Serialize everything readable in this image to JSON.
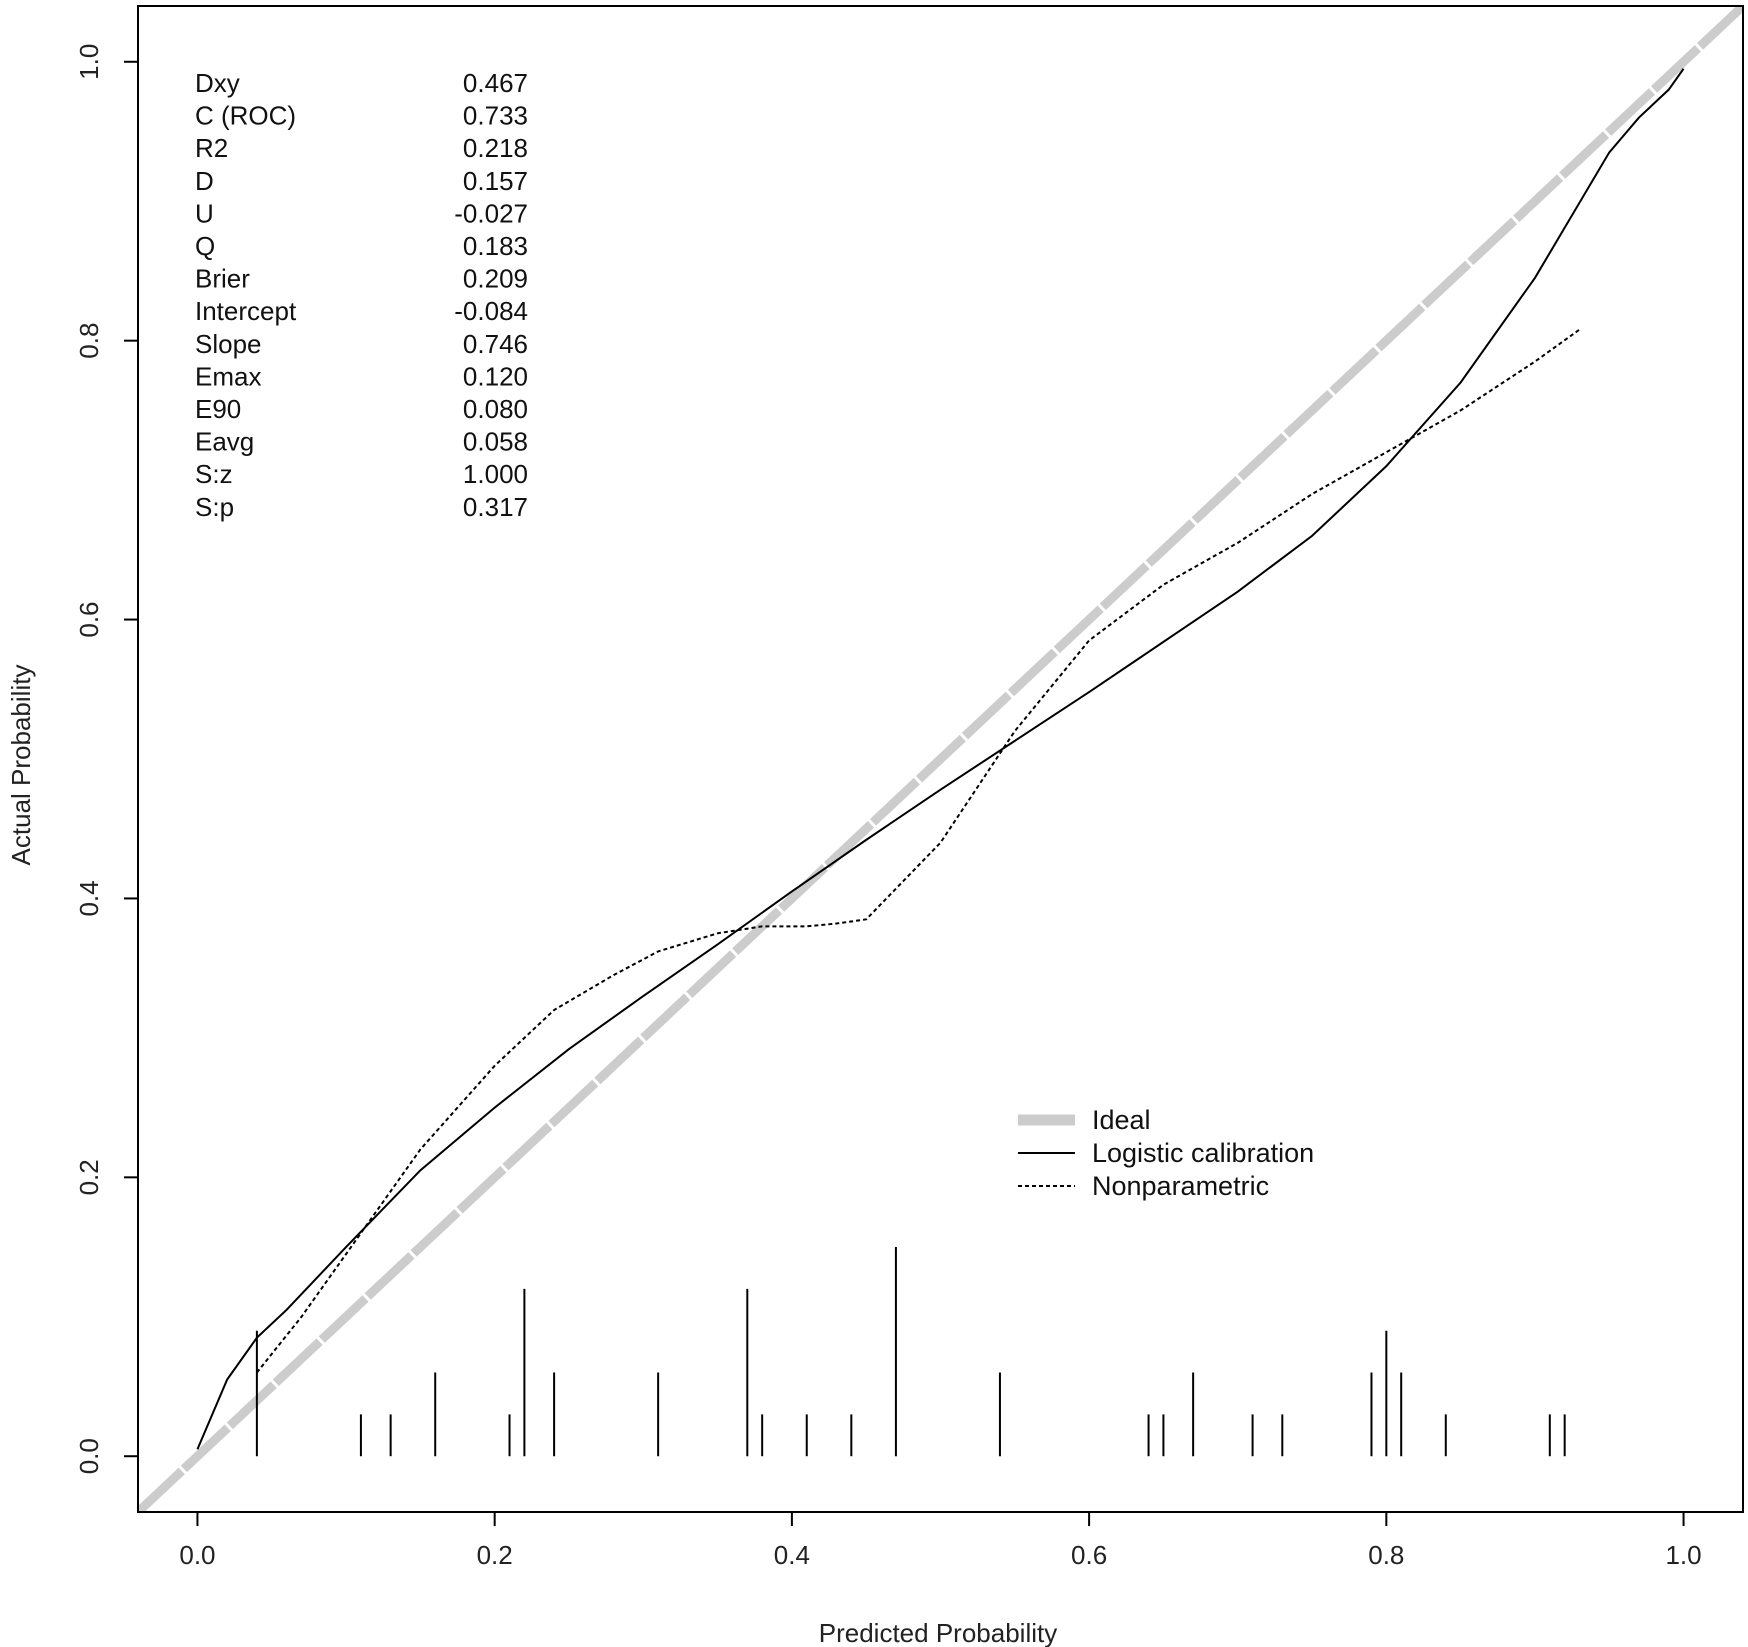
{
  "chart_data": {
    "type": "line",
    "xlabel": "Predicted Probability",
    "ylabel": "Actual Probability",
    "xlim": [
      -0.04,
      1.04
    ],
    "ylim": [
      -0.04,
      1.04
    ],
    "x_ticks": [
      0.0,
      0.2,
      0.4,
      0.6,
      0.8,
      1.0
    ],
    "x_tick_labels": [
      "0.0",
      "0.2",
      "0.4",
      "0.6",
      "0.8",
      "1.0"
    ],
    "y_ticks": [
      0.0,
      0.2,
      0.4,
      0.6,
      0.8,
      1.0
    ],
    "y_tick_labels": [
      "0.0",
      "0.2",
      "0.4",
      "0.6",
      "0.8",
      "1.0"
    ],
    "stats": [
      {
        "label": "Dxy",
        "value": "0.467"
      },
      {
        "label": "C (ROC)",
        "value": "0.733"
      },
      {
        "label": "R2",
        "value": "0.218"
      },
      {
        "label": "D",
        "value": "0.157"
      },
      {
        "label": "U",
        "value": "-0.027"
      },
      {
        "label": "Q",
        "value": "0.183"
      },
      {
        "label": "Brier",
        "value": "0.209"
      },
      {
        "label": "Intercept",
        "value": "-0.084"
      },
      {
        "label": "Slope",
        "value": "0.746"
      },
      {
        "label": "Emax",
        "value": "0.120"
      },
      {
        "label": "E90",
        "value": "0.080"
      },
      {
        "label": "Eavg",
        "value": "0.058"
      },
      {
        "label": "S:z",
        "value": "1.000"
      },
      {
        "label": "S:p",
        "value": "0.317"
      }
    ],
    "legend": {
      "position": "center-right-lower",
      "entries": [
        {
          "label": "Ideal",
          "style": "thick-gray"
        },
        {
          "label": "Logistic calibration",
          "style": "solid"
        },
        {
          "label": "Nonparametric",
          "style": "dotted"
        }
      ]
    },
    "series": [
      {
        "name": "Ideal",
        "color": "#cccccc",
        "x": [
          -0.04,
          1.04
        ],
        "y": [
          -0.04,
          1.04
        ]
      },
      {
        "name": "Logistic calibration",
        "color": "#000000",
        "x": [
          0.0,
          0.02,
          0.04,
          0.06,
          0.1,
          0.15,
          0.2,
          0.25,
          0.3,
          0.35,
          0.4,
          0.45,
          0.5,
          0.55,
          0.6,
          0.65,
          0.7,
          0.75,
          0.8,
          0.85,
          0.9,
          0.95,
          0.97,
          0.99,
          1.0
        ],
        "y": [
          0.005,
          0.055,
          0.085,
          0.105,
          0.15,
          0.205,
          0.25,
          0.292,
          0.33,
          0.367,
          0.405,
          0.442,
          0.478,
          0.513,
          0.548,
          0.584,
          0.62,
          0.66,
          0.71,
          0.77,
          0.845,
          0.935,
          0.96,
          0.98,
          0.995
        ]
      },
      {
        "name": "Nonparametric",
        "color": "#000000",
        "x": [
          0.04,
          0.07,
          0.11,
          0.15,
          0.2,
          0.24,
          0.28,
          0.31,
          0.35,
          0.38,
          0.41,
          0.43,
          0.45,
          0.5,
          0.55,
          0.6,
          0.65,
          0.7,
          0.75,
          0.8,
          0.85,
          0.9,
          0.93
        ],
        "y": [
          0.06,
          0.1,
          0.16,
          0.22,
          0.28,
          0.32,
          0.345,
          0.362,
          0.375,
          0.38,
          0.38,
          0.382,
          0.385,
          0.44,
          0.52,
          0.585,
          0.625,
          0.655,
          0.69,
          0.72,
          0.75,
          0.785,
          0.808
        ]
      }
    ],
    "rug": {
      "x": [
        0.04,
        0.11,
        0.13,
        0.16,
        0.21,
        0.22,
        0.24,
        0.31,
        0.37,
        0.38,
        0.41,
        0.44,
        0.47,
        0.54,
        0.64,
        0.65,
        0.67,
        0.71,
        0.73,
        0.79,
        0.8,
        0.81,
        0.84,
        0.91,
        0.92
      ],
      "height": [
        0.09,
        0.03,
        0.03,
        0.06,
        0.03,
        0.12,
        0.06,
        0.06,
        0.12,
        0.03,
        0.03,
        0.03,
        0.15,
        0.06,
        0.03,
        0.03,
        0.06,
        0.03,
        0.03,
        0.06,
        0.09,
        0.06,
        0.03,
        0.03,
        0.03
      ]
    }
  }
}
